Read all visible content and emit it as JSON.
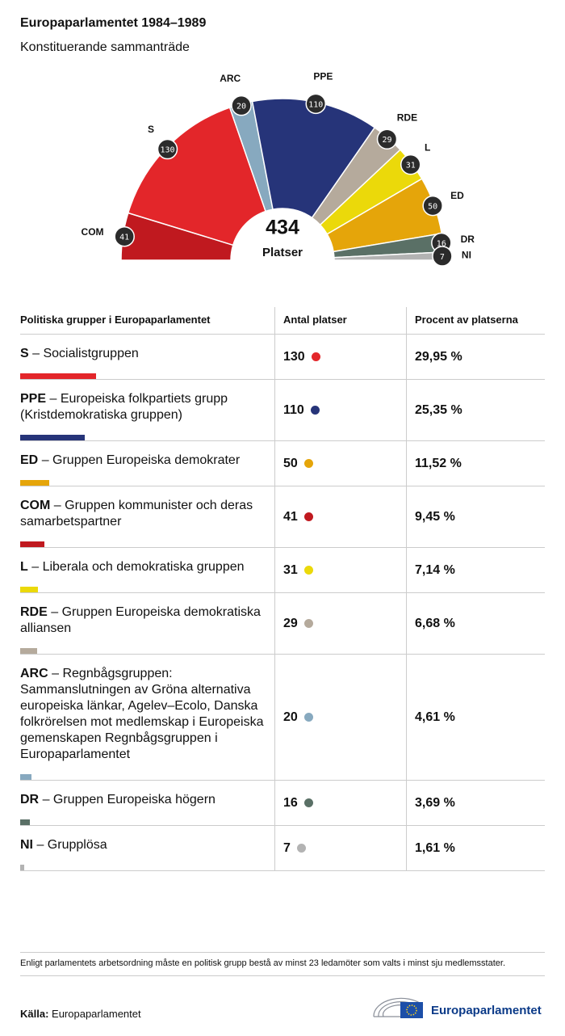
{
  "header": {
    "title": "Europaparlamentet 1984–1989",
    "subtitle": "Konstituerande sammanträde"
  },
  "chart_data": {
    "type": "pie",
    "half": true,
    "donut": true,
    "categories": [
      "COM",
      "S",
      "ARC",
      "PPE",
      "RDE",
      "L",
      "ED",
      "DR",
      "NI"
    ],
    "values": [
      41,
      130,
      20,
      110,
      29,
      31,
      50,
      16,
      7
    ],
    "colors": [
      "#c0191f",
      "#e3262a",
      "#87a9bf",
      "#263479",
      "#b5aa9c",
      "#ebd90a",
      "#e5a50a",
      "#5a7066",
      "#b3b3b3"
    ],
    "total": 434,
    "total_label": "Platser"
  },
  "table": {
    "columns": [
      "Politiska grupper i Europaparlamentet",
      "Antal platser",
      "Procent av platserna"
    ],
    "rows": [
      {
        "abbr": "S",
        "name": "– Socialistgruppen",
        "seats": 130,
        "percent": "29,95 %",
        "color": "#e3262a"
      },
      {
        "abbr": "PPE",
        "name": "– Europeiska folkpartiets grupp (Kristdemokratiska gruppen)",
        "seats": 110,
        "percent": "25,35 %",
        "color": "#263479"
      },
      {
        "abbr": "ED",
        "name": "– Gruppen Europeiska demokrater",
        "seats": 50,
        "percent": "11,52 %",
        "color": "#e5a50a"
      },
      {
        "abbr": "COM",
        "name": "– Gruppen kommunister och deras samarbetspartner",
        "seats": 41,
        "percent": "9,45 %",
        "color": "#c0191f"
      },
      {
        "abbr": "L",
        "name": "– Liberala och demokratiska gruppen",
        "seats": 31,
        "percent": "7,14 %",
        "color": "#ebd90a"
      },
      {
        "abbr": "RDE",
        "name": "– Gruppen Europeiska demokratiska alliansen",
        "seats": 29,
        "percent": "6,68 %",
        "color": "#b5aa9c"
      },
      {
        "abbr": "ARC",
        "name": "– Regnbågsgruppen: Sammanslutningen av Gröna alternativa europeiska länkar, Agelev–Ecolo, Danska folkrörelsen mot medlemskap i Europeiska gemenskapen Regnbågsgruppen i Europaparlamentet",
        "seats": 20,
        "percent": "4,61 %",
        "color": "#87a9bf"
      },
      {
        "abbr": "DR",
        "name": "– Gruppen Europeiska högern",
        "seats": 16,
        "percent": "3,69 %",
        "color": "#5a7066"
      },
      {
        "abbr": "NI",
        "name": "– Grupplösa",
        "seats": 7,
        "percent": "1,61 %",
        "color": "#b3b3b3"
      }
    ]
  },
  "footer": {
    "note": "Enligt parlamentets arbetsordning måste en politisk grupp bestå av minst 23 ledamöter som valts i minst sju medlemsstater.",
    "source_label": "Källa:",
    "source": "Europaparlamentet",
    "logo": "Europaparlamentet"
  }
}
